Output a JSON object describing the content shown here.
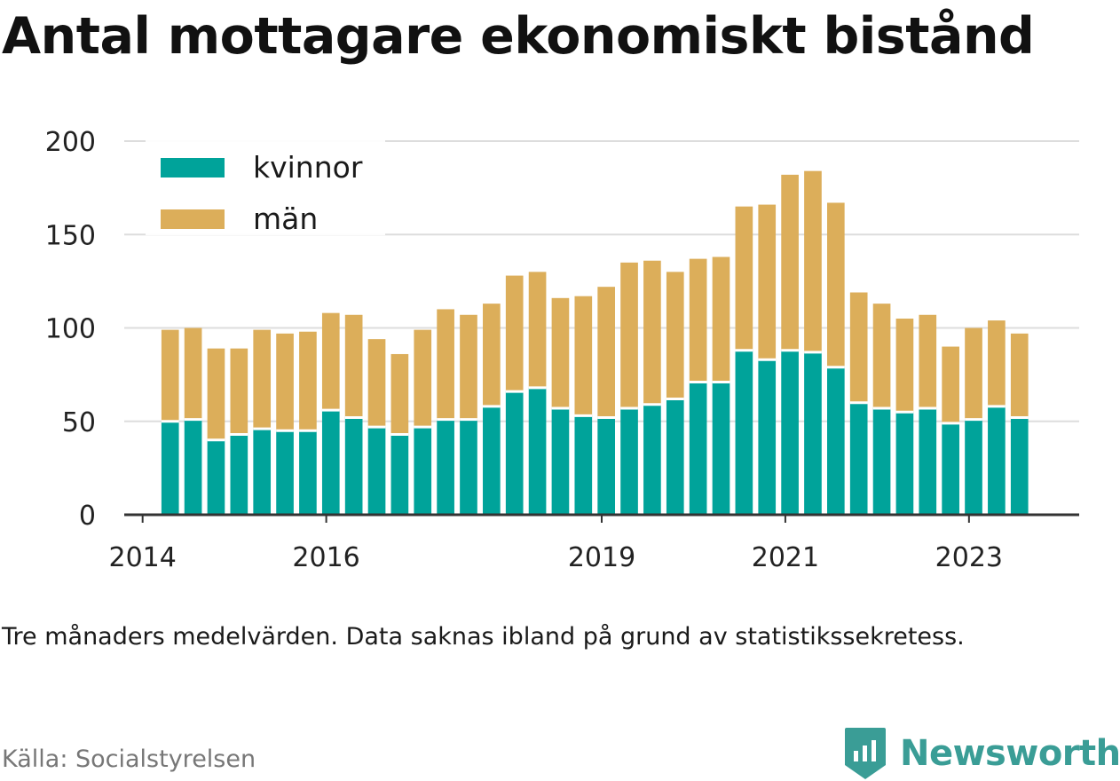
{
  "title": "Antal mottagare ekonomiskt bistånd",
  "note": "Tre månaders medelvärden. Data saknas ibland på grund av statistikssekretess.",
  "source": "Källa: Socialstyrelsen",
  "brand": {
    "name": "Newsworthy",
    "icon": "bar-chart-badge-icon",
    "color": "#3a9d96"
  },
  "colors": {
    "kvinnor": "#00a39a",
    "man": "#dcae5a",
    "grid": "#dddddd",
    "axis": "#333333"
  },
  "chart_data": {
    "type": "bar",
    "stacked": true,
    "x_start_year": 2014.3,
    "x_step_years": 0.25,
    "xaxis_ticks": [
      "2014",
      "2016",
      "2019",
      "2021",
      "2023"
    ],
    "xlim": [
      2013.8,
      2024.2
    ],
    "ylim": [
      0,
      200
    ],
    "yaxis_ticks": [
      0,
      50,
      100,
      150,
      200
    ],
    "grid": true,
    "legend_position": "top-left",
    "series": [
      {
        "name": "kvinnor",
        "color": "#00a39a",
        "values": [
          50,
          51,
          40,
          43,
          46,
          45,
          45,
          56,
          52,
          47,
          43,
          47,
          51,
          51,
          58,
          66,
          68,
          57,
          53,
          52,
          57,
          59,
          62,
          71,
          71,
          88,
          83,
          88,
          87,
          79,
          60,
          57,
          55,
          57,
          49,
          51,
          58,
          52
        ]
      },
      {
        "name": "män",
        "color": "#dcae5a",
        "values": [
          49,
          49,
          49,
          46,
          53,
          52,
          53,
          52,
          55,
          47,
          43,
          52,
          59,
          56,
          55,
          62,
          62,
          59,
          64,
          70,
          78,
          77,
          68,
          66,
          67,
          77,
          83,
          94,
          97,
          88,
          59,
          56,
          50,
          50,
          41,
          49,
          46,
          45
        ]
      }
    ]
  }
}
